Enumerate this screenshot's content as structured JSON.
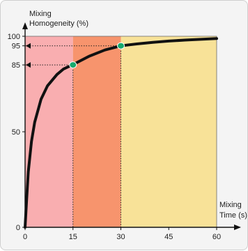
{
  "chart_data": {
    "type": "area",
    "title": "",
    "ylabel_line1": "Mixing",
    "ylabel_line2": "Homogeneity (%)",
    "xlabel_line1": "Mixing",
    "xlabel_line2": "Time (s)",
    "xlim": [
      0,
      60
    ],
    "ylim": [
      0,
      100
    ],
    "x_ticks": [
      "0",
      "15",
      "30",
      "45",
      "60"
    ],
    "y_ticks": [
      "0",
      "50",
      "85",
      "95",
      "100"
    ],
    "series": [
      {
        "x": [
          0,
          0.5,
          1,
          2,
          3,
          5,
          7,
          10,
          12,
          15,
          20,
          25,
          30,
          35,
          40,
          45,
          50,
          55,
          60
        ],
        "y": [
          0,
          15,
          29,
          45,
          55,
          67,
          74,
          80,
          82.8,
          85.2,
          89.5,
          92.8,
          95,
          96,
          96.8,
          97.5,
          98,
          98.4,
          98.8
        ]
      }
    ],
    "markers": [
      {
        "x": 15,
        "y": 85
      },
      {
        "x": 30,
        "y": 95
      }
    ],
    "regions": [
      {
        "x_from": 0,
        "x_to": 15,
        "color": "#f9aeb0"
      },
      {
        "x_from": 15,
        "x_to": 30,
        "color": "#f7946d"
      },
      {
        "x_from": 30,
        "x_to": 60,
        "color": "#f8e298"
      }
    ],
    "colors": {
      "curve": "#111111",
      "marker_fill": "#16a96d",
      "marker_stroke": "#ffffff",
      "arrow": "#111111",
      "background": "#f4f4f4"
    },
    "grid": false,
    "legend": "none"
  }
}
